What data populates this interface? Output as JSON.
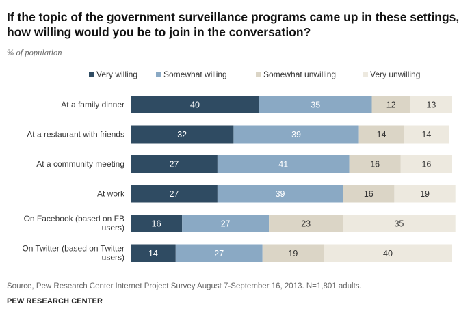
{
  "title": "If the topic of the government surveillance programs came up in these settings, how willing would you be to join in the conversation?",
  "subtitle": "% of population",
  "source": "Source, Pew Research Center Internet Project Survey August 7-September 16, 2013. N=1,801 adults.",
  "credit": "PEW RESEARCH CENTER",
  "colors": {
    "very_willing": "#2f4b62",
    "somewhat_willing": "#8aa9c4",
    "somewhat_unwilling": "#dbd5c6",
    "very_unwilling": "#ede9df"
  },
  "chart_data": {
    "type": "bar",
    "orientation": "horizontal",
    "stacked": true,
    "categories": [
      [
        "At a family dinner"
      ],
      [
        "At a restaurant with friends"
      ],
      [
        "At a community meeting"
      ],
      [
        "At work"
      ],
      [
        "On Facebook (based on FB",
        "users)"
      ],
      [
        "On Twitter (based on Twitter",
        "users)"
      ]
    ],
    "series": [
      {
        "name": "Very willing",
        "values": [
          40,
          32,
          27,
          27,
          16,
          14
        ]
      },
      {
        "name": "Somewhat willing",
        "values": [
          35,
          39,
          41,
          39,
          27,
          27
        ]
      },
      {
        "name": "Somewhat unwilling",
        "values": [
          12,
          14,
          16,
          16,
          23,
          19
        ]
      },
      {
        "name": "Very unwilling",
        "values": [
          13,
          14,
          16,
          19,
          35,
          40
        ]
      }
    ],
    "legend_position": "top",
    "xlim": [
      0,
      100
    ],
    "unit": "% of population"
  }
}
